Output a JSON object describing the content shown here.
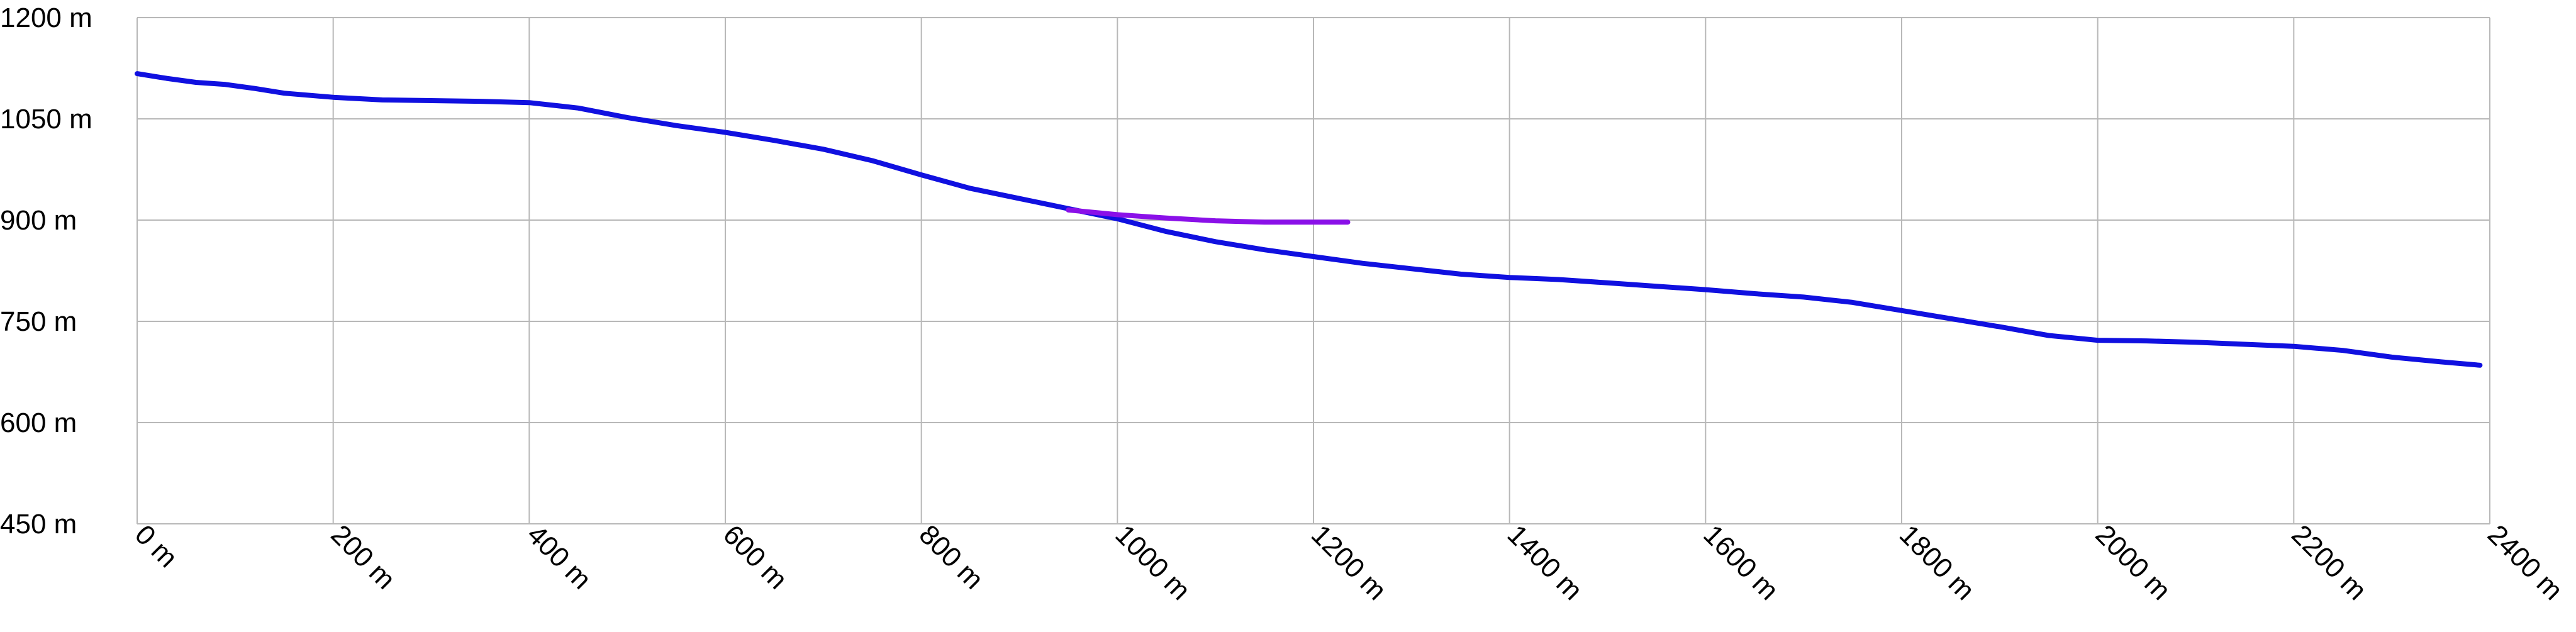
{
  "chart_data": {
    "type": "line",
    "title": "",
    "xlabel": "",
    "ylabel": "",
    "xlim": [
      0,
      2400
    ],
    "ylim": [
      450,
      1200
    ],
    "grid": true,
    "x_ticks": [
      0,
      200,
      400,
      600,
      800,
      1000,
      1200,
      1400,
      1600,
      1800,
      2000,
      2200,
      2400
    ],
    "x_tick_labels": [
      "0 m",
      "200 m",
      "400 m",
      "600 m",
      "800 m",
      "1000 m",
      "1200 m",
      "1400 m",
      "1600 m",
      "1800 m",
      "2000 m",
      "2200 m",
      "2400 m"
    ],
    "y_ticks": [
      1200,
      1050,
      900,
      750,
      600,
      450
    ],
    "y_tick_labels": [
      "1200 m",
      "1050 m",
      "900 m",
      "750 m",
      "600 m",
      "450 m"
    ],
    "series": [
      {
        "color": "#1010e0",
        "points": [
          [
            0,
            1117
          ],
          [
            30,
            1110
          ],
          [
            60,
            1104
          ],
          [
            90,
            1101
          ],
          [
            120,
            1095
          ],
          [
            150,
            1088
          ],
          [
            200,
            1082
          ],
          [
            250,
            1078
          ],
          [
            300,
            1077
          ],
          [
            350,
            1076
          ],
          [
            400,
            1074
          ],
          [
            450,
            1066
          ],
          [
            500,
            1052
          ],
          [
            550,
            1040
          ],
          [
            600,
            1030
          ],
          [
            650,
            1018
          ],
          [
            700,
            1005
          ],
          [
            750,
            988
          ],
          [
            800,
            967
          ],
          [
            850,
            947
          ],
          [
            900,
            932
          ],
          [
            950,
            917
          ],
          [
            1000,
            902
          ],
          [
            1050,
            883
          ],
          [
            1100,
            868
          ],
          [
            1150,
            856
          ],
          [
            1200,
            846
          ],
          [
            1250,
            836
          ],
          [
            1300,
            828
          ],
          [
            1350,
            820
          ],
          [
            1400,
            815
          ],
          [
            1450,
            812
          ],
          [
            1500,
            807
          ],
          [
            1550,
            802
          ],
          [
            1600,
            797
          ],
          [
            1650,
            791
          ],
          [
            1700,
            786
          ],
          [
            1750,
            778
          ],
          [
            1800,
            766
          ],
          [
            1850,
            754
          ],
          [
            1900,
            742
          ],
          [
            1950,
            729
          ],
          [
            2000,
            722
          ],
          [
            2050,
            721
          ],
          [
            2100,
            719
          ],
          [
            2150,
            716
          ],
          [
            2200,
            713
          ],
          [
            2250,
            707
          ],
          [
            2300,
            697
          ],
          [
            2350,
            690
          ],
          [
            2390,
            685
          ]
        ]
      },
      {
        "color": "#8a10e8",
        "points": [
          [
            950,
            915
          ],
          [
            1000,
            908
          ],
          [
            1050,
            903
          ],
          [
            1100,
            899
          ],
          [
            1150,
            897
          ],
          [
            1200,
            897
          ],
          [
            1235,
            897
          ]
        ]
      }
    ]
  }
}
